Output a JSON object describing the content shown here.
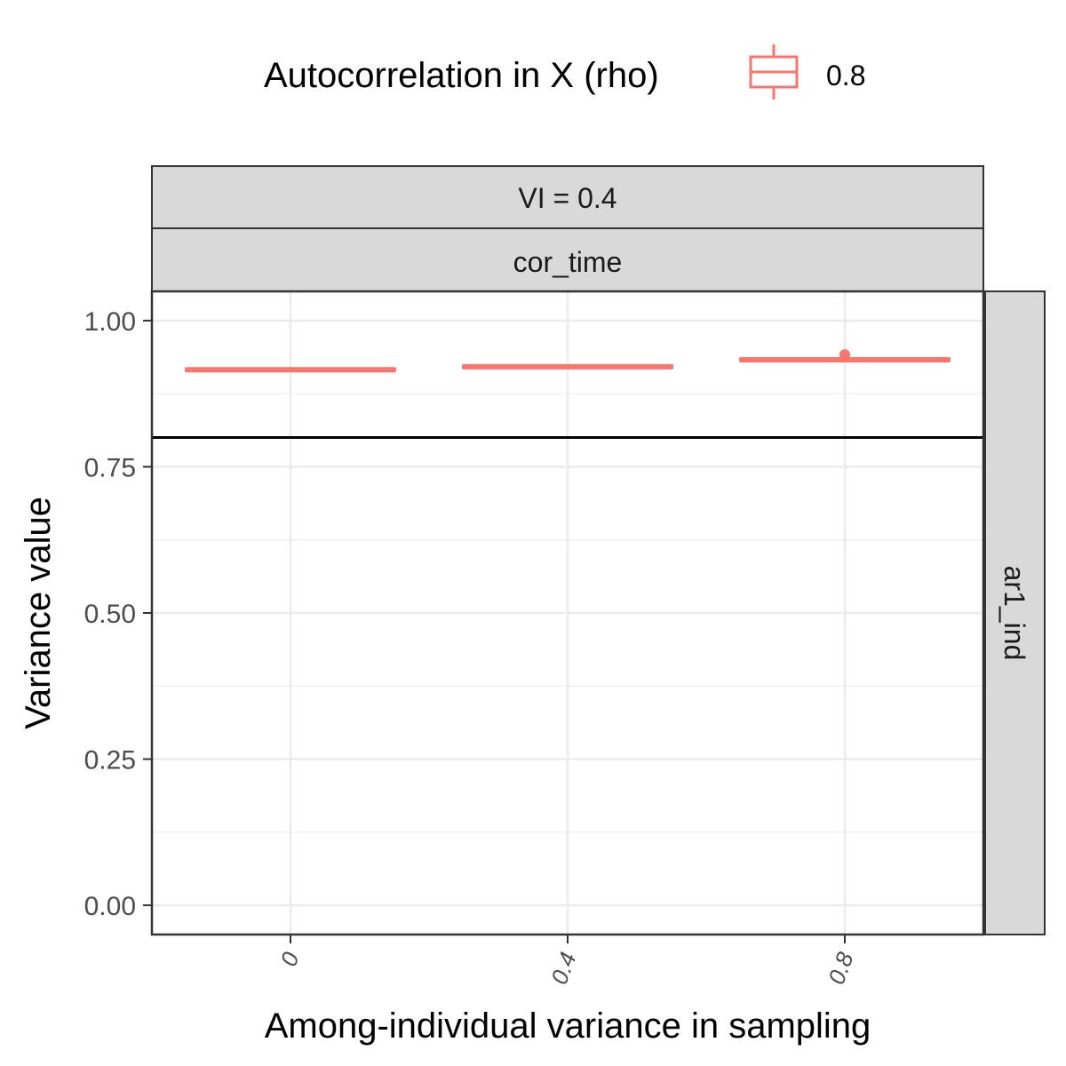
{
  "chart_data": {
    "type": "boxplot",
    "legend": {
      "title": "Autocorrelation in X (rho)",
      "entries": [
        {
          "label": "0.8",
          "color": "#F8766D"
        }
      ],
      "placement": "top"
    },
    "facets": {
      "top_strip_1": "VI = 0.4",
      "top_strip_2": "cor_time",
      "right_strip": "ar1_ind"
    },
    "xlabel": "Among-individual variance in sampling",
    "ylabel": "Variance value",
    "categories": [
      "0",
      "0.4",
      "0.8"
    ],
    "yticks": [
      "0.00",
      "0.25",
      "0.50",
      "0.75",
      "1.00"
    ],
    "ylim": [
      -0.05,
      1.05
    ],
    "reference_line": 0.8,
    "series": [
      {
        "name": "0.8",
        "color": "#F8766D",
        "boxes": [
          {
            "category": "0",
            "q1": 0.915,
            "median": 0.916,
            "q3": 0.917,
            "whisker_low": 0.914,
            "whisker_high": 0.918,
            "outliers": []
          },
          {
            "category": "0.4",
            "q1": 0.92,
            "median": 0.921,
            "q3": 0.922,
            "whisker_low": 0.919,
            "whisker_high": 0.923,
            "outliers": []
          },
          {
            "category": "0.8",
            "q1": 0.932,
            "median": 0.933,
            "q3": 0.934,
            "whisker_low": 0.931,
            "whisker_high": 0.936,
            "outliers": [
              0.942
            ]
          }
        ]
      }
    ],
    "grid": true
  }
}
